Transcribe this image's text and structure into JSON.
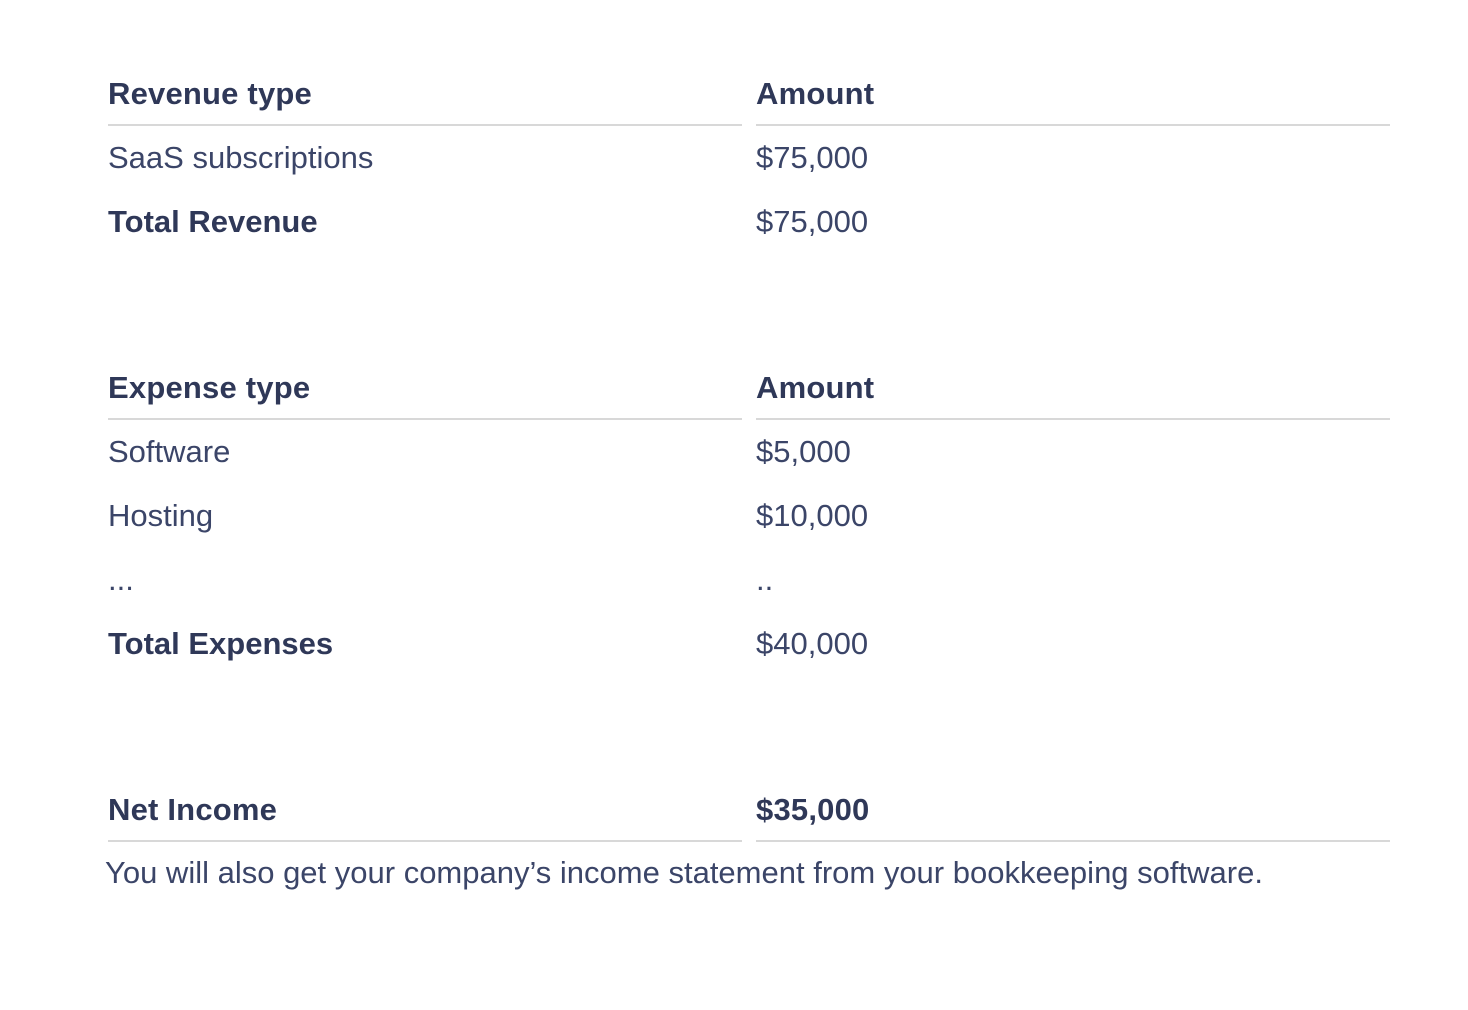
{
  "colors": {
    "card_background": "#ffffff",
    "text_regular": "#3b4568",
    "text_bold": "#2f3858",
    "divider": "#d8d8d8"
  },
  "revenue_table": {
    "columns": [
      "Revenue type",
      "Amount"
    ],
    "rows": [
      {
        "label": "SaaS subscriptions",
        "amount": "$75,000"
      },
      {
        "label": "Total Revenue",
        "amount": "$75,000"
      }
    ]
  },
  "expense_table": {
    "columns": [
      "Expense type",
      "Amount"
    ],
    "rows": [
      {
        "label": "Software",
        "amount": "$5,000"
      },
      {
        "label": "Hosting",
        "amount": "$10,000"
      },
      {
        "label": "...",
        "amount": ".."
      },
      {
        "label": "Total Expenses",
        "amount": "$40,000"
      }
    ]
  },
  "summary": {
    "label": "Net Income",
    "amount": "$35,000"
  },
  "footer": {
    "text": "You will also get your company’s income statement from your bookkeeping software."
  }
}
